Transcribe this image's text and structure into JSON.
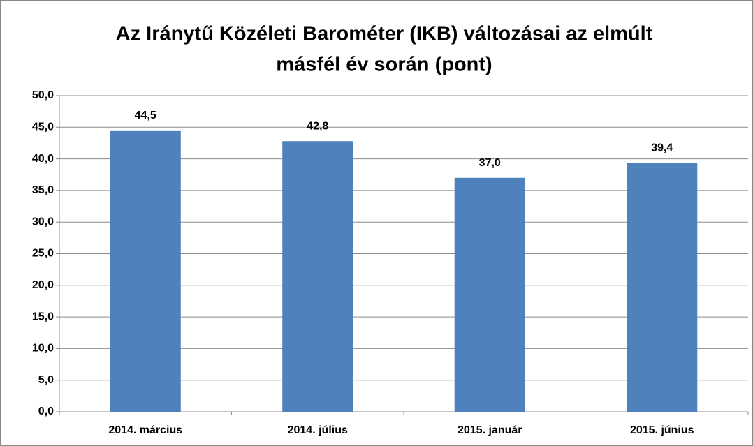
{
  "chart_data": {
    "type": "bar",
    "title": [
      "Az Iránytű Közéleti Barométer (IKB) változásai az elmúlt",
      "másfél év során (pont)"
    ],
    "categories": [
      "2014. március",
      "2014. július",
      "2015. január",
      "2015. június"
    ],
    "values": [
      44.5,
      42.8,
      37.0,
      39.4
    ],
    "value_labels": [
      "44,5",
      "42,8",
      "37,0",
      "39,4"
    ],
    "color": "#4f81bd",
    "ylim": [
      0,
      50
    ],
    "yticks": [
      {
        "value": 0,
        "label": "0,0"
      },
      {
        "value": 5,
        "label": "5,0"
      },
      {
        "value": 10,
        "label": "10,0"
      },
      {
        "value": 15,
        "label": "15,0"
      },
      {
        "value": 20,
        "label": "20,0"
      },
      {
        "value": 25,
        "label": "25,0"
      },
      {
        "value": 30,
        "label": "30,0"
      },
      {
        "value": 35,
        "label": "35,0"
      },
      {
        "value": 40,
        "label": "40,0"
      },
      {
        "value": 45,
        "label": "45,0"
      },
      {
        "value": 50,
        "label": "50,0"
      }
    ],
    "grid": true
  }
}
